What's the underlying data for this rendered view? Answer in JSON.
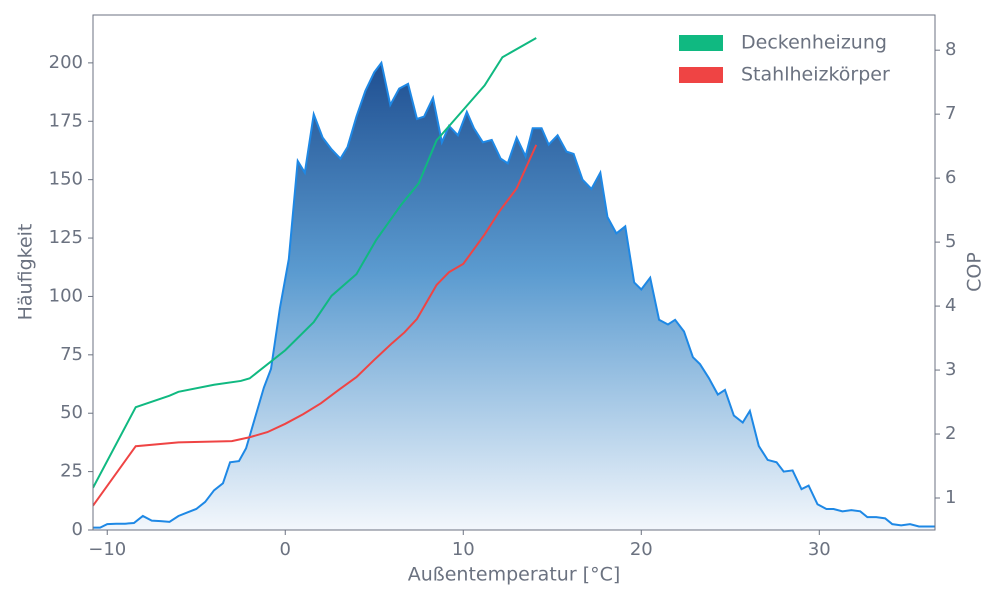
{
  "chart_data": {
    "type": "area",
    "xlabel": "Außentemperatur [°C]",
    "ylabel": "Häufigkeit",
    "y2label": "COP",
    "xlim": [
      -10.8,
      36.5
    ],
    "ylim": [
      0,
      220.5
    ],
    "y2lim": [
      0.5,
      8.55
    ],
    "xticks": [
      {
        "value": -10,
        "label": "−10"
      },
      0,
      10,
      20,
      30
    ],
    "yticks": [
      0,
      25,
      50,
      75,
      100,
      125,
      150,
      175,
      200
    ],
    "y2ticks": [
      1,
      2,
      3,
      4,
      5,
      6,
      7,
      8
    ],
    "legend": "upper right",
    "series": [
      {
        "type": "area",
        "color": "#1e88e5",
        "x": [
          -10.8,
          -10.4,
          -10,
          -9.5,
          -9,
          -8.5,
          -8,
          -7.5,
          -7,
          -6.5,
          -6,
          -5.5,
          -5,
          -4.5,
          -4,
          -3.5,
          -3.1,
          -2.6,
          -2.2,
          -1.7,
          -1.2,
          -0.8,
          -0.3,
          0.2,
          0.7,
          1.1,
          1.6,
          2.1,
          2.6,
          3.1,
          3.5,
          4,
          4.5,
          5,
          5.4,
          5.9,
          6.4,
          6.9,
          7.4,
          7.8,
          8.3,
          8.8,
          9.2,
          9.7,
          10.2,
          10.6,
          11.1,
          11.6,
          12.1,
          12.5,
          13,
          13.5,
          13.9,
          14.4,
          14.8,
          15.3,
          15.8,
          16.2,
          16.7,
          17.2,
          17.7,
          18.1,
          18.6,
          19.1,
          19.6,
          20,
          20.5,
          21,
          21.5,
          21.9,
          22.4,
          22.9,
          23.3,
          23.8,
          24.3,
          24.7,
          25.2,
          25.7,
          26.1,
          26.6,
          27.1,
          27.6,
          28,
          28.5,
          29,
          29.4,
          29.9,
          30.4,
          30.8,
          31.3,
          31.8,
          32.3,
          32.7,
          33.2,
          33.7,
          34.1,
          34.6,
          35.1,
          35.6,
          36.5
        ],
        "values": [
          1,
          1,
          2.5,
          2.7,
          2.7,
          3,
          6,
          4,
          3.8,
          3.5,
          6,
          7.5,
          9,
          12,
          17,
          20,
          29,
          29.5,
          35,
          48,
          61,
          69,
          95,
          116,
          158,
          153,
          178,
          168,
          163,
          159,
          164,
          177,
          188,
          196,
          200,
          182,
          189,
          191,
          176,
          177,
          185,
          166,
          173,
          169,
          179,
          172,
          166,
          167,
          159,
          157,
          168,
          160,
          172,
          172,
          165,
          169,
          162,
          161,
          150,
          146,
          153,
          134,
          127,
          130,
          106,
          103,
          108,
          90,
          88,
          90,
          85,
          74,
          71,
          65,
          58,
          60,
          49,
          46,
          51,
          36,
          30,
          29,
          25,
          25.5,
          17.5,
          19,
          11,
          9,
          9,
          8,
          8.5,
          8,
          5.5,
          5.5,
          5,
          2.5,
          2,
          2.5,
          1.5,
          1.5
        ]
      },
      {
        "type": "line",
        "name": "Deckenheizung",
        "color": "#10b981",
        "axis": "y2",
        "x": [
          -10.8,
          -8.4,
          -6.5,
          -6,
          -4,
          -2.5,
          -2,
          -1.5,
          0,
          1.6,
          2.6,
          4,
          5.1,
          6.5,
          7.5,
          8.5,
          9.6,
          11.2,
          12.2,
          14.1
        ],
        "values": [
          1.16,
          2.42,
          2.6,
          2.66,
          2.77,
          2.83,
          2.87,
          2.98,
          3.31,
          3.75,
          4.16,
          4.5,
          5.03,
          5.58,
          5.92,
          6.59,
          6.94,
          7.45,
          7.89,
          8.19
        ]
      },
      {
        "type": "line",
        "name": "Stahlheizkörper",
        "color": "#ef4444",
        "axis": "y2",
        "x": [
          -10.8,
          -8.4,
          -6,
          -3,
          -2,
          -1,
          0,
          1,
          2,
          3,
          4,
          5,
          6,
          6.7,
          7.4,
          8.5,
          9.2,
          10,
          11.2,
          12,
          13,
          14.1
        ],
        "values": [
          0.88,
          1.81,
          1.87,
          1.89,
          1.95,
          2.03,
          2.16,
          2.31,
          2.48,
          2.69,
          2.89,
          3.16,
          3.42,
          3.59,
          3.8,
          4.33,
          4.53,
          4.66,
          5.12,
          5.47,
          5.84,
          6.52
        ]
      }
    ]
  }
}
